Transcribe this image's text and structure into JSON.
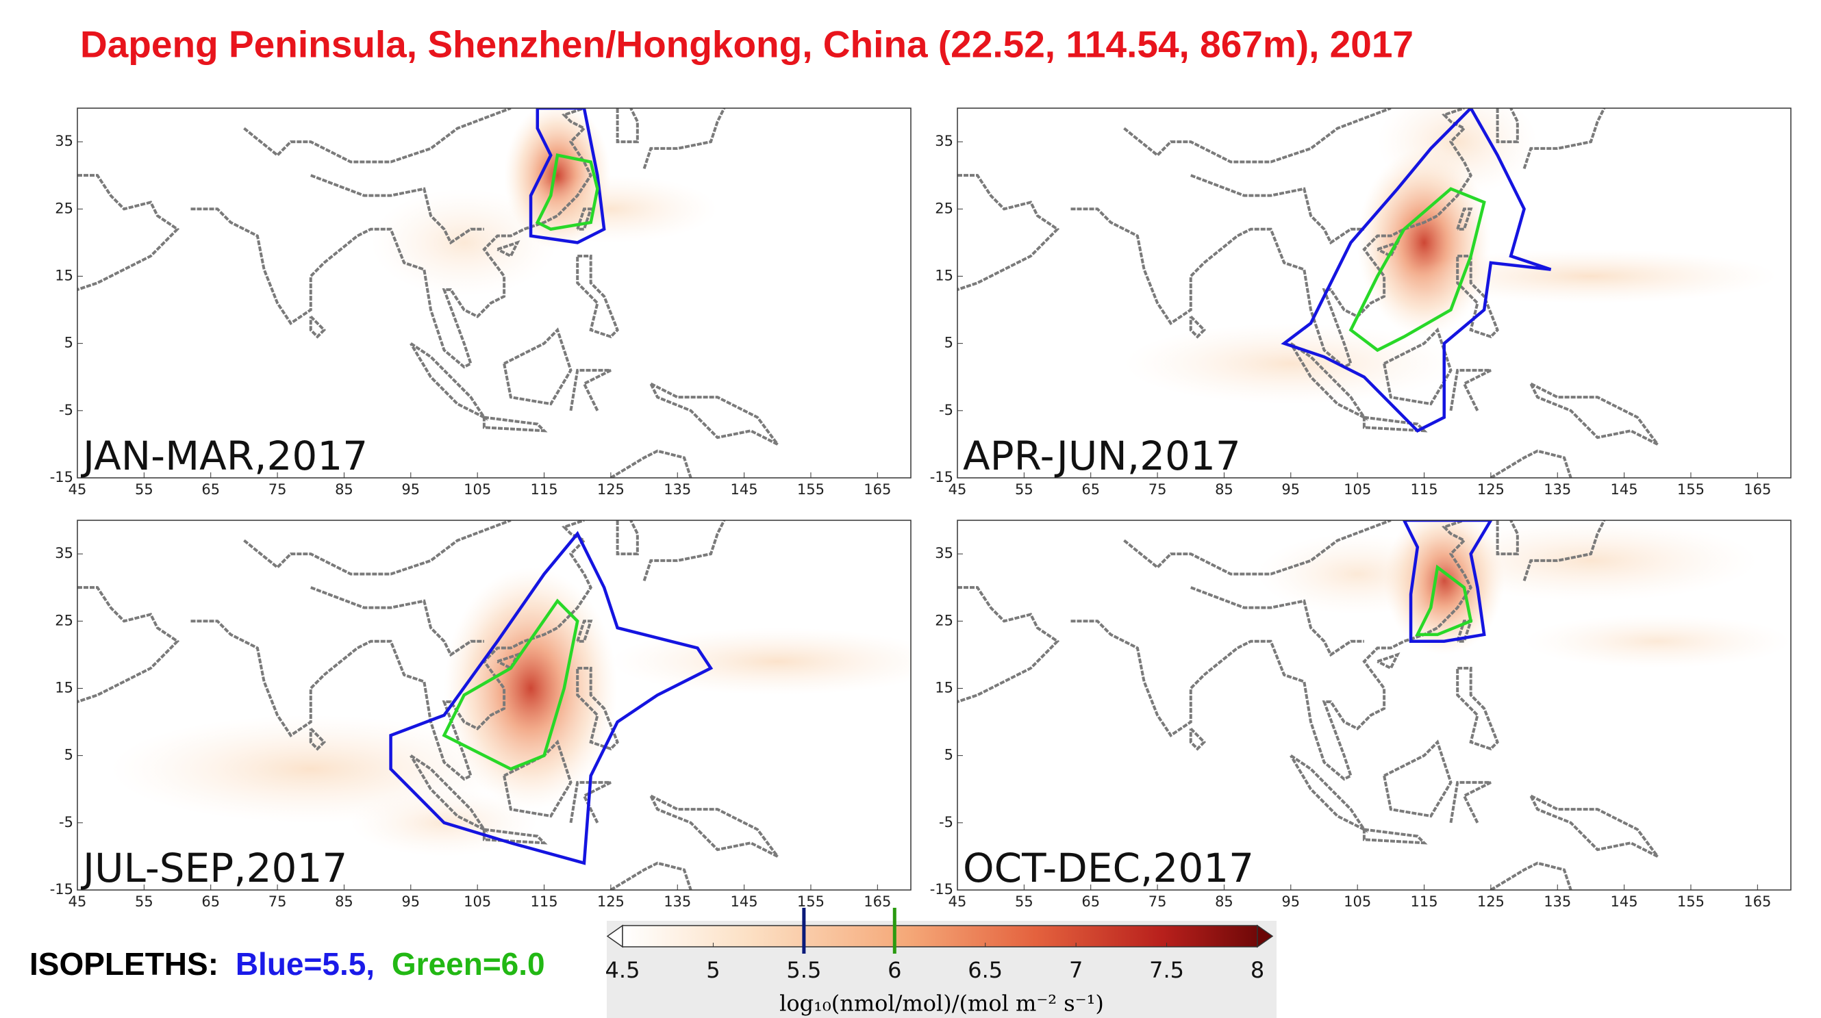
{
  "title": "Dapeng Peninsula, Shenzhen/Hongkong, China (22.52, 114.54, 867m), 2017",
  "map": {
    "xlim": [
      45,
      170
    ],
    "ylim": [
      -15,
      40
    ],
    "xticks": [
      45,
      55,
      65,
      75,
      85,
      95,
      105,
      115,
      125,
      135,
      145,
      155,
      165
    ],
    "yticks": [
      -15,
      -5,
      5,
      15,
      25,
      35
    ]
  },
  "panels": [
    {
      "label": "JAN-MAR,2017"
    },
    {
      "label": "APR-JUN,2017"
    },
    {
      "label": "JUL-SEP,2017"
    },
    {
      "label": "OCT-DEC,2017"
    }
  ],
  "isopleths": {
    "prefix": "ISOPLETHS:",
    "blue": "Blue=5.5,",
    "green": "Green=6.0",
    "levels": [
      {
        "value": 5.5,
        "color": "#0a1a7a"
      },
      {
        "value": 6,
        "color": "#2a9a10"
      }
    ]
  },
  "colorbar": {
    "lim": [
      4.5,
      8
    ],
    "ticks": [
      4.5,
      5,
      5.5,
      6,
      6.5,
      7,
      7.5,
      8
    ],
    "label": "log₁₀(nmol/mol)/(mol m⁻² s⁻¹)"
  }
}
